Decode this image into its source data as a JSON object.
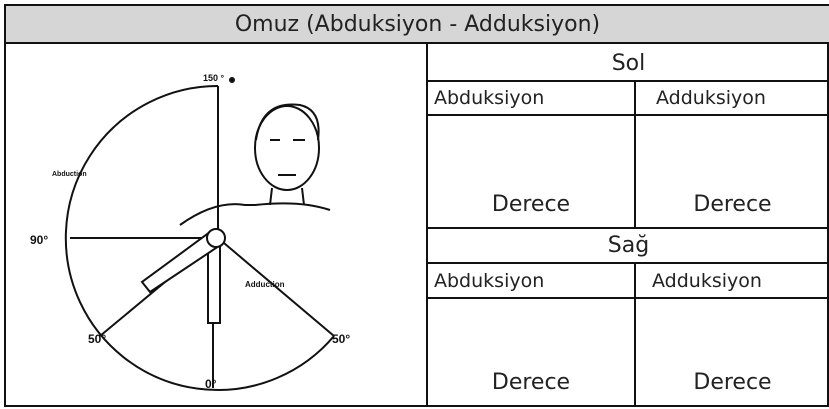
{
  "header": {
    "title": "Omuz (Abduksiyon - Adduksiyon)"
  },
  "figure": {
    "labels": {
      "top": "150 °",
      "abduction": "Abduction",
      "horizontal": "90°",
      "adduction": "Adduction",
      "left_low": "50°",
      "right_low": "50°",
      "bottom": "0°"
    }
  },
  "table": {
    "sections": [
      {
        "title": "Sol",
        "columns": [
          "Abduksiyon",
          "Adduksiyon"
        ],
        "cells": [
          "Derece",
          "Derece"
        ]
      },
      {
        "title": "Sağ",
        "columns": [
          "Abduksiyon",
          "Adduksiyon"
        ],
        "cells": [
          "Derece",
          "Derece"
        ]
      }
    ]
  }
}
